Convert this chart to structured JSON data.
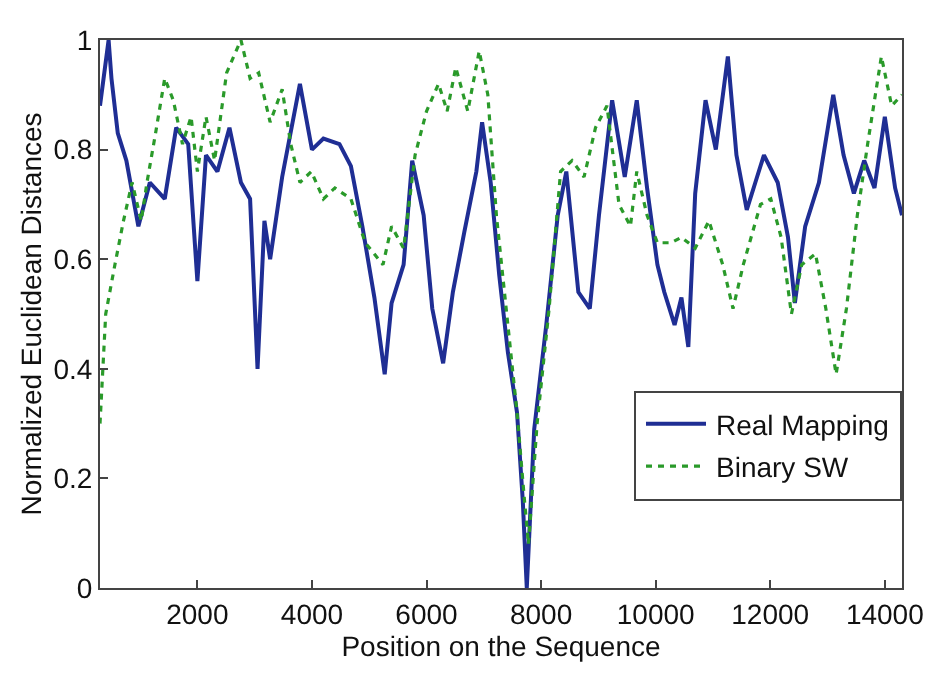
{
  "chart_data": {
    "type": "line",
    "xlabel": "Position on the Sequence",
    "ylabel": "Normalized Euclidean Distances",
    "xlim": [
      300,
      14300
    ],
    "xticks": [
      2000,
      4000,
      6000,
      8000,
      10000,
      12000,
      14000
    ],
    "ylim": [
      0,
      1
    ],
    "yticks": [
      0,
      0.2,
      0.4,
      0.6,
      0.8,
      1
    ],
    "legend": "right",
    "marker": "none",
    "series": [
      {
        "name": "Real Mapping",
        "color": "#1f2e94",
        "line_style": "solid",
        "x": [
          300,
          450,
          500,
          610,
          760,
          970,
          1170,
          1430,
          1630,
          1840,
          2000,
          2150,
          2350,
          2560,
          2760,
          2920,
          3050,
          3170,
          3270,
          3480,
          3790,
          4000,
          4200,
          4480,
          4680,
          4880,
          5090,
          5270,
          5390,
          5600,
          5750,
          5950,
          6100,
          6290,
          6460,
          6660,
          6870,
          6970,
          7120,
          7270,
          7420,
          7580,
          7680,
          7750,
          7880,
          8090,
          8290,
          8440,
          8650,
          8850,
          9010,
          9240,
          9460,
          9670,
          9850,
          10030,
          10150,
          10330,
          10450,
          10570,
          10690,
          10870,
          11050,
          11260,
          11410,
          11590,
          11740,
          11890,
          12130,
          12310,
          12430,
          12610,
          12850,
          13100,
          13280,
          13460,
          13640,
          13820,
          14000,
          14180,
          14300
        ],
        "values": [
          0.88,
          1.0,
          0.93,
          0.83,
          0.78,
          0.66,
          0.74,
          0.71,
          0.84,
          0.81,
          0.56,
          0.79,
          0.76,
          0.84,
          0.74,
          0.71,
          0.4,
          0.67,
          0.6,
          0.75,
          0.92,
          0.8,
          0.82,
          0.81,
          0.77,
          0.66,
          0.53,
          0.39,
          0.52,
          0.59,
          0.78,
          0.68,
          0.51,
          0.41,
          0.54,
          0.65,
          0.76,
          0.85,
          0.74,
          0.57,
          0.43,
          0.32,
          0.16,
          0.0,
          0.29,
          0.48,
          0.68,
          0.76,
          0.54,
          0.51,
          0.68,
          0.89,
          0.75,
          0.89,
          0.73,
          0.59,
          0.54,
          0.48,
          0.53,
          0.44,
          0.72,
          0.89,
          0.8,
          0.97,
          0.79,
          0.69,
          0.74,
          0.79,
          0.74,
          0.64,
          0.52,
          0.66,
          0.74,
          0.9,
          0.79,
          0.72,
          0.78,
          0.73,
          0.86,
          0.73,
          0.68
        ]
      },
      {
        "name": "Binary SW",
        "color": "#2a9a2a",
        "line_style": "dotted",
        "x": [
          300,
          400,
          560,
          710,
          860,
          1020,
          1120,
          1270,
          1430,
          1580,
          1740,
          1890,
          2000,
          2150,
          2300,
          2510,
          2760,
          2920,
          3070,
          3270,
          3480,
          3630,
          3790,
          3990,
          4200,
          4400,
          4680,
          4930,
          5240,
          5390,
          5600,
          5800,
          6000,
          6210,
          6360,
          6510,
          6720,
          6920,
          7070,
          7220,
          7420,
          7580,
          7710,
          7780,
          7930,
          8140,
          8340,
          8540,
          8750,
          8950,
          9150,
          9360,
          9560,
          9670,
          9850,
          10030,
          10270,
          10450,
          10690,
          10930,
          11170,
          11350,
          11530,
          11830,
          12010,
          12190,
          12370,
          12550,
          12790,
          12970,
          13150,
          13330,
          13520,
          13700,
          13940,
          14120,
          14300
        ],
        "values": [
          0.3,
          0.5,
          0.59,
          0.67,
          0.74,
          0.67,
          0.74,
          0.83,
          0.93,
          0.89,
          0.81,
          0.86,
          0.76,
          0.86,
          0.78,
          0.94,
          1.0,
          0.93,
          0.94,
          0.85,
          0.91,
          0.81,
          0.74,
          0.76,
          0.71,
          0.73,
          0.71,
          0.63,
          0.59,
          0.66,
          0.62,
          0.79,
          0.87,
          0.92,
          0.87,
          0.95,
          0.87,
          0.98,
          0.9,
          0.68,
          0.48,
          0.32,
          0.16,
          0.08,
          0.3,
          0.51,
          0.76,
          0.78,
          0.75,
          0.84,
          0.88,
          0.7,
          0.66,
          0.76,
          0.68,
          0.63,
          0.63,
          0.64,
          0.62,
          0.67,
          0.59,
          0.51,
          0.59,
          0.7,
          0.71,
          0.64,
          0.5,
          0.59,
          0.61,
          0.51,
          0.39,
          0.51,
          0.68,
          0.81,
          0.97,
          0.88,
          0.9
        ]
      }
    ]
  }
}
